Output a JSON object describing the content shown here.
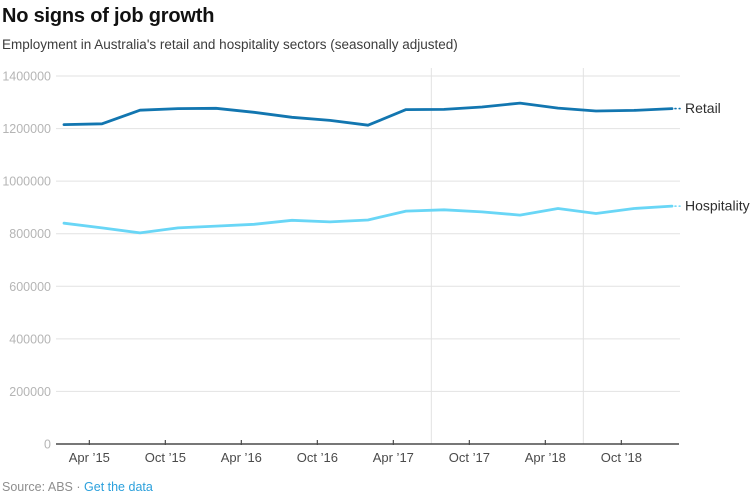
{
  "header": {
    "title": "No signs of job growth",
    "subtitle": "Employment in Australia's retail and hospitality sectors (seasonally adjusted)"
  },
  "footer": {
    "source_label": "Source: ABS",
    "separator": "·",
    "link_label": "Get the data"
  },
  "colors": {
    "retail": "#1276b0",
    "hospitality": "#69d6f6",
    "grid": "#e2e2e2",
    "axis": "#4a4a4a",
    "y_label": "#b5b5b5",
    "x_label": "#4a4a4a",
    "series_label": "#2e2e2e",
    "source_text": "#8e8e8e",
    "link": "#2ba0dc"
  },
  "chart_data": {
    "type": "line",
    "title": "No signs of job growth",
    "subtitle": "Employment in Australia's retail and hospitality sectors (seasonally adjusted)",
    "x": [
      "Feb '15",
      "May '15",
      "Aug '15",
      "Nov '15",
      "Feb '16",
      "May '16",
      "Aug '16",
      "Nov '16",
      "Feb '17",
      "May '17",
      "Aug '17",
      "Nov '17",
      "Feb '18",
      "May '18",
      "Aug '18",
      "Nov '18",
      "Feb '19"
    ],
    "series": [
      {
        "name": "Retail",
        "color": "#1276b0",
        "values": [
          1215000,
          1218000,
          1270000,
          1276000,
          1277000,
          1262000,
          1243000,
          1231000,
          1213000,
          1272000,
          1273000,
          1282000,
          1297000,
          1278000,
          1267000,
          1269000,
          1276000
        ]
      },
      {
        "name": "Hospitality",
        "color": "#69d6f6",
        "values": [
          840000,
          822000,
          803000,
          822000,
          829000,
          836000,
          851000,
          845000,
          852000,
          886000,
          891000,
          883000,
          871000,
          896000,
          877000,
          896000,
          905000
        ]
      }
    ],
    "x_ticks": [
      {
        "label": "Apr ’15",
        "month": 2
      },
      {
        "label": "Oct ’15",
        "month": 8
      },
      {
        "label": "Apr ’16",
        "month": 14
      },
      {
        "label": "Oct ’16",
        "month": 20
      },
      {
        "label": "Apr ’17",
        "month": 26
      },
      {
        "label": "Oct ’17",
        "month": 32
      },
      {
        "label": "Apr ’18",
        "month": 38
      },
      {
        "label": "Oct ’18",
        "month": 44
      }
    ],
    "months_span": 48,
    "y_ticks": [
      0,
      200000,
      400000,
      600000,
      800000,
      1000000,
      1200000,
      1400000
    ],
    "ylim": [
      0,
      1400000
    ],
    "vertical_gridline_months": [
      29,
      41
    ],
    "grid": "horizontal gridlines + two vertical gridlines",
    "legend_position": "direct labels right of line ends"
  }
}
